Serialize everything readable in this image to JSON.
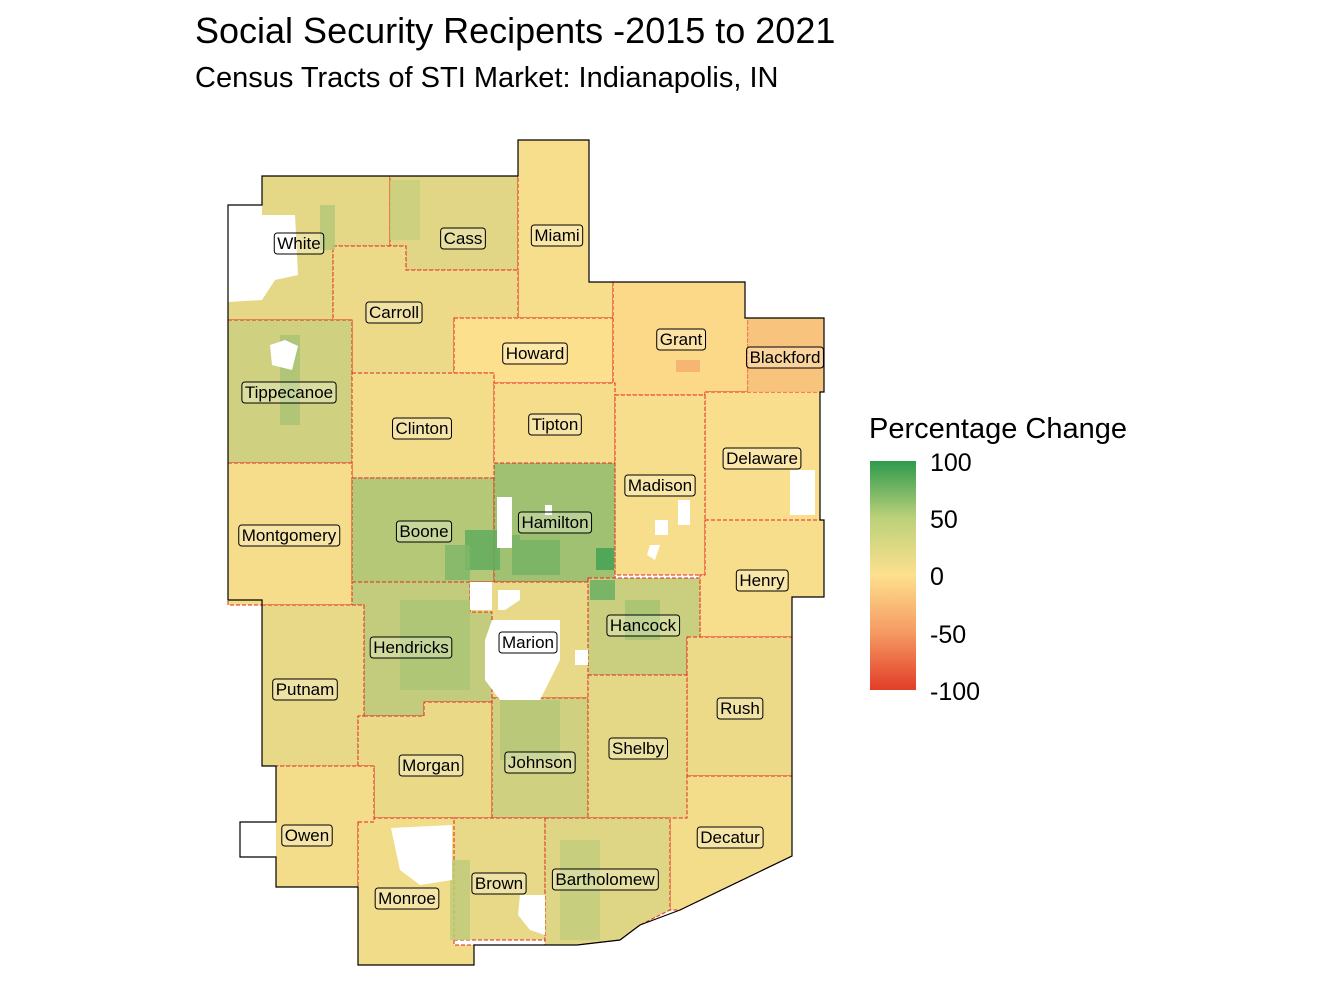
{
  "title": "Social Security Recipents -2015 to 2021",
  "subtitle": "Census Tracts of STI Market: Indianapolis, IN",
  "legend": {
    "title": "Percentage Change",
    "ticks": [
      "100",
      "50",
      "0",
      "-50",
      "-100"
    ],
    "scale": {
      "min": -100,
      "mid": 0,
      "max": 100,
      "low_color": "#e23d28",
      "mid_color": "#fde08e",
      "high_color": "#2e9a4e"
    }
  },
  "colors": {
    "county_border": "#e3261f",
    "outline": "#000000",
    "no_data": "#ffffff"
  },
  "counties": [
    {
      "name": "White",
      "change": 12
    },
    {
      "name": "Cass",
      "change": 14
    },
    {
      "name": "Miami",
      "change": 3
    },
    {
      "name": "Carroll",
      "change": 8
    },
    {
      "name": "Howard",
      "change": 0
    },
    {
      "name": "Grant",
      "change": -5
    },
    {
      "name": "Blackford",
      "change": -15
    },
    {
      "name": "Tippecanoe",
      "change": 22
    },
    {
      "name": "Clinton",
      "change": 5
    },
    {
      "name": "Tipton",
      "change": 4
    },
    {
      "name": "Delaware",
      "change": 2
    },
    {
      "name": "Madison",
      "change": 3
    },
    {
      "name": "Montgomery",
      "change": 4
    },
    {
      "name": "Boone",
      "change": 35
    },
    {
      "name": "Hamilton",
      "change": 45
    },
    {
      "name": "Henry",
      "change": 3
    },
    {
      "name": "Hendricks",
      "change": 28
    },
    {
      "name": "Marion",
      "change": 10
    },
    {
      "name": "Hancock",
      "change": 25
    },
    {
      "name": "Putnam",
      "change": 10
    },
    {
      "name": "Rush",
      "change": 8
    },
    {
      "name": "Morgan",
      "change": 9
    },
    {
      "name": "Johnson",
      "change": 22
    },
    {
      "name": "Shelby",
      "change": 12
    },
    {
      "name": "Owen",
      "change": 5
    },
    {
      "name": "Decatur",
      "change": 5
    },
    {
      "name": "Monroe",
      "change": 6
    },
    {
      "name": "Brown",
      "change": 10
    },
    {
      "name": "Bartholomew",
      "change": 15
    }
  ]
}
